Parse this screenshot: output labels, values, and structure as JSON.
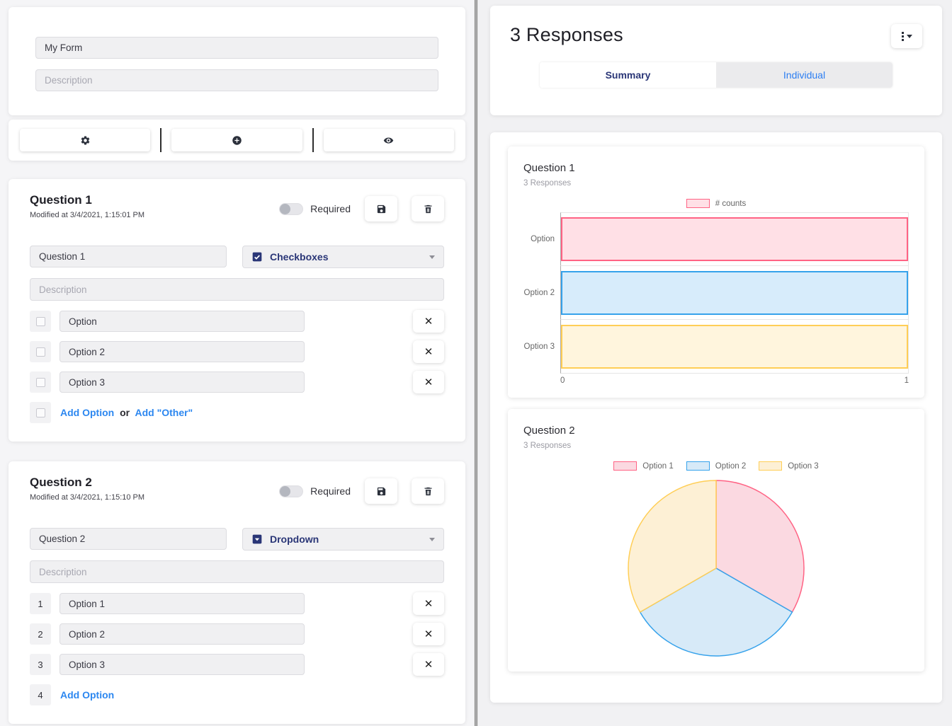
{
  "left": {
    "form": {
      "name_value": "My Form",
      "description_placeholder": "Description"
    },
    "questions": [
      {
        "title": "Question 1",
        "modified": "Modified at 3/4/2021, 1:15:01 PM",
        "required_label": "Required",
        "name_value": "Question 1",
        "type_value": "Checkboxes",
        "description_placeholder": "Description",
        "options": [
          "Option",
          "Option 2",
          "Option 3"
        ],
        "add_option_label": "Add Option",
        "or_label": "or",
        "add_other_label": "Add \"Other\""
      },
      {
        "title": "Question 2",
        "modified": "Modified at 3/4/2021, 1:15:10 PM",
        "required_label": "Required",
        "name_value": "Question 2",
        "type_value": "Dropdown",
        "description_placeholder": "Description",
        "numbers": [
          "1",
          "2",
          "3"
        ],
        "options": [
          "Option 1",
          "Option 2",
          "Option 3"
        ],
        "add_number": "4",
        "add_option_label": "Add Option"
      }
    ]
  },
  "right": {
    "title": "3 Responses",
    "tabs": [
      {
        "label": "Summary",
        "active": true
      },
      {
        "label": "Individual",
        "active": false
      }
    ]
  },
  "colors": {
    "accent_navy": "#2a3677",
    "link_blue": "#2c87f0",
    "chart_pink": "#FF6384",
    "chart_blue": "#36A2EB",
    "chart_yellow": "#FFCE56"
  },
  "chart_data": [
    {
      "type": "bar",
      "orientation": "horizontal",
      "title": "Question 1",
      "subtitle": "3 Responses",
      "legend_label": "# counts",
      "legend_position": "top",
      "categories": [
        "Option",
        "Option 2",
        "Option 3"
      ],
      "values": [
        1,
        1,
        1
      ],
      "xlim": [
        0,
        1
      ],
      "x_ticks": [
        0,
        1
      ],
      "grid": true,
      "colors": {
        "fill": [
          "#FFE0E6",
          "#D7ECFB",
          "#FFF5DD"
        ],
        "border": [
          "#FF6384",
          "#36A2EB",
          "#FFCE56"
        ]
      }
    },
    {
      "type": "pie",
      "title": "Question 2",
      "subtitle": "3 Responses",
      "legend_position": "top",
      "labels": [
        "Option 1",
        "Option 2",
        "Option 3"
      ],
      "values": [
        1,
        1,
        1
      ],
      "start_angle_deg": -90,
      "direction": "clockwise",
      "colors": {
        "fill": [
          "#FBD9E1",
          "#D7EAF8",
          "#FDF0D5"
        ],
        "border": [
          "#FF6384",
          "#36A2EB",
          "#FFCE56"
        ]
      }
    }
  ]
}
